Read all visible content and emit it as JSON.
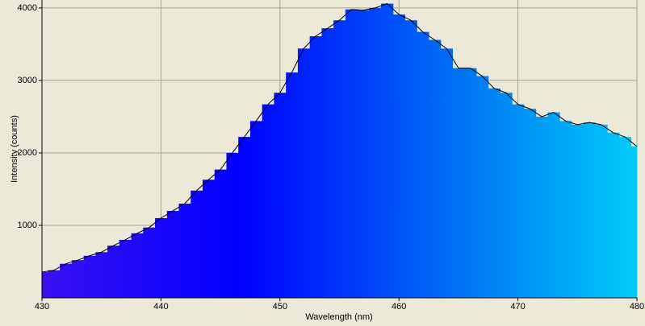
{
  "chart_data": {
    "type": "spectrum",
    "x_label": "Wavelength (nm)",
    "y_label": "Intensity (counts)",
    "x": [
      430,
      431,
      432,
      433,
      434,
      435,
      436,
      437,
      438,
      439,
      440,
      441,
      442,
      443,
      444,
      445,
      446,
      447,
      448,
      449,
      450,
      451,
      452,
      453,
      454,
      455,
      456,
      457,
      458,
      459,
      460,
      461,
      462,
      463,
      464,
      465,
      466,
      467,
      468,
      469,
      470,
      471,
      472,
      473,
      474,
      475,
      476,
      477,
      478,
      479,
      480
    ],
    "values": [
      355,
      380,
      470,
      520,
      580,
      630,
      720,
      800,
      890,
      970,
      1100,
      1200,
      1300,
      1480,
      1630,
      1770,
      2000,
      2220,
      2440,
      2670,
      2830,
      3110,
      3440,
      3610,
      3720,
      3830,
      3980,
      3970,
      4000,
      4060,
      3910,
      3830,
      3670,
      3560,
      3440,
      3170,
      3170,
      3060,
      2890,
      2830,
      2670,
      2610,
      2500,
      2560,
      2440,
      2390,
      2420,
      2390,
      2280,
      2220,
      2090
    ],
    "fill_colors": [
      "#3a10f2",
      "#0000ff",
      "#0068f4",
      "#00ccf8"
    ],
    "line_color": "#000000",
    "xlim": [
      430,
      480
    ],
    "ylim": [
      0,
      4110
    ],
    "xticks": [
      430,
      440,
      450,
      460,
      470,
      480
    ],
    "yticks": [
      1000,
      2000,
      3000,
      4000
    ],
    "grid": true
  }
}
